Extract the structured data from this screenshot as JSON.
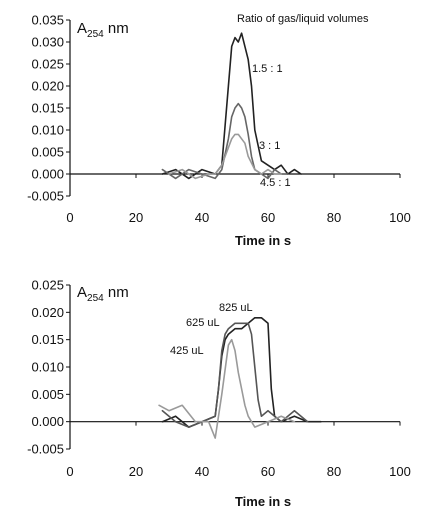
{
  "chart_data": [
    {
      "type": "line",
      "ylabel_main": "A",
      "ylabel_sub": "254",
      "ylabel_unit": " nm",
      "xlabel": "Time in s",
      "xlim": [
        0,
        100
      ],
      "ylim": [
        -0.005,
        0.035
      ],
      "xticks": [
        0,
        20,
        40,
        60,
        80,
        100
      ],
      "yticks": [
        "-0.005",
        "0.000",
        "0.005",
        "0.010",
        "0.015",
        "0.020",
        "0.025",
        "0.030",
        "0.035"
      ],
      "annotations": {
        "title": "Ratio of gas/liquid volumes"
      },
      "series": [
        {
          "name": "1.5 : 1",
          "color": "#222222",
          "x": [
            28,
            32,
            36,
            40,
            44,
            46,
            48,
            49,
            50,
            51,
            52,
            53,
            54,
            55,
            56,
            58,
            60,
            62,
            64,
            66,
            68,
            70
          ],
          "y": [
            0.0,
            0.001,
            -0.001,
            0.001,
            0.0,
            0.002,
            0.02,
            0.029,
            0.031,
            0.03,
            0.032,
            0.029,
            0.026,
            0.02,
            0.01,
            0.003,
            0.002,
            0.001,
            0.002,
            0.0,
            0.001,
            0.0
          ]
        },
        {
          "name": "3 : 1",
          "color": "#666666",
          "x": [
            28,
            32,
            36,
            40,
            44,
            46,
            48,
            49,
            50,
            51,
            52,
            53,
            54,
            55,
            56,
            58,
            60,
            62,
            64,
            66
          ],
          "y": [
            0.001,
            -0.001,
            0.001,
            0.0,
            -0.001,
            0.001,
            0.008,
            0.013,
            0.015,
            0.016,
            0.015,
            0.013,
            0.009,
            0.004,
            0.001,
            0.0,
            -0.001,
            0.001,
            0.0,
            0.0
          ]
        },
        {
          "name": "4.5 : 1",
          "color": "#9a9a9a",
          "x": [
            30,
            34,
            38,
            42,
            44,
            46,
            48,
            49,
            50,
            51,
            52,
            53,
            54,
            56,
            58,
            60,
            62,
            64
          ],
          "y": [
            0.0,
            0.001,
            -0.001,
            0.0,
            0.0,
            0.002,
            0.006,
            0.008,
            0.009,
            0.009,
            0.008,
            0.007,
            0.004,
            0.001,
            0.0,
            0.001,
            0.0,
            0.0
          ]
        }
      ]
    },
    {
      "type": "line",
      "ylabel_main": "A",
      "ylabel_sub": "254",
      "ylabel_unit": " nm",
      "xlabel": "Time in s",
      "xlim": [
        0,
        100
      ],
      "ylim": [
        -0.005,
        0.025
      ],
      "xticks": [
        0,
        20,
        40,
        60,
        80,
        100
      ],
      "yticks": [
        "-0.005",
        "0.000",
        "0.005",
        "0.010",
        "0.015",
        "0.020",
        "0.025"
      ],
      "series": [
        {
          "name": "825 uL",
          "color": "#222222",
          "x": [
            28,
            32,
            36,
            40,
            44,
            45,
            46,
            47,
            48,
            50,
            52,
            54,
            56,
            58,
            60,
            61,
            62,
            64,
            68,
            72,
            76
          ],
          "y": [
            0.0,
            0.001,
            -0.001,
            0.0,
            0.001,
            0.006,
            0.012,
            0.015,
            0.016,
            0.017,
            0.017,
            0.018,
            0.019,
            0.019,
            0.018,
            0.006,
            0.001,
            0.0,
            0.001,
            0.0,
            0.0
          ]
        },
        {
          "name": "625 uL",
          "color": "#555555",
          "x": [
            28,
            32,
            36,
            40,
            44,
            45,
            46,
            47,
            48,
            50,
            52,
            54,
            55,
            56,
            57,
            58,
            60,
            64,
            68,
            72
          ],
          "y": [
            0.002,
            0.0,
            -0.001,
            0.0,
            0.001,
            0.006,
            0.013,
            0.016,
            0.017,
            0.018,
            0.018,
            0.018,
            0.016,
            0.01,
            0.004,
            0.001,
            0.002,
            0.0,
            0.002,
            0.0
          ]
        },
        {
          "name": "425 uL",
          "color": "#9a9a9a",
          "x": [
            27,
            30,
            34,
            38,
            42,
            44,
            46,
            48,
            49,
            50,
            51,
            52,
            53,
            54,
            56,
            60,
            64,
            68
          ],
          "y": [
            0.003,
            0.002,
            0.003,
            0.0,
            0.0,
            -0.003,
            0.005,
            0.014,
            0.015,
            0.013,
            0.009,
            0.006,
            0.003,
            0.001,
            -0.001,
            0.0,
            0.001,
            0.0
          ]
        }
      ]
    }
  ]
}
